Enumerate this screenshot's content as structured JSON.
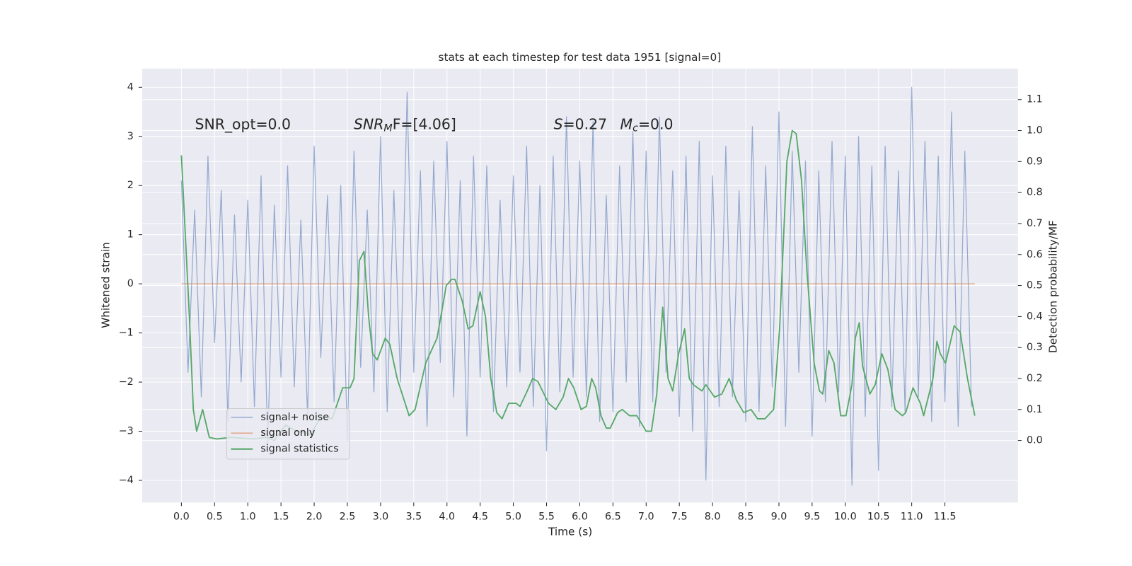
{
  "chart_data": {
    "type": "line",
    "title": "stats at each timestep for test data 1951 [signal=0]",
    "xlabel": "Time (s)",
    "ylabel": "Whitened strain",
    "y2label": "Detection probability/MF",
    "annotations": [
      [
        "SNR_opt=0.0"
      ],
      [
        "SNR",
        "M",
        "F=[4.06]"
      ],
      [
        "S",
        "=0.27"
      ],
      [
        "M",
        "c",
        "=0.0"
      ]
    ],
    "xlim": [
      -0.59,
      12.6
    ],
    "ylim": [
      -4.45,
      4.38
    ],
    "y2lim": [
      -0.2,
      1.2
    ],
    "xticks": [
      {
        "value": 0,
        "label": "0.0"
      },
      0.5,
      {
        "value": 1,
        "label": "1.0"
      },
      1.5,
      {
        "value": 2,
        "label": "2.0"
      },
      2.5,
      {
        "value": 3,
        "label": "3.0"
      },
      3.5,
      {
        "value": 4,
        "label": "4.0"
      },
      4.5,
      {
        "value": 5,
        "label": "5.0"
      },
      5.5,
      {
        "value": 6,
        "label": "6.0"
      },
      6.5,
      {
        "value": 7,
        "label": "7.0"
      },
      7.5,
      {
        "value": 8,
        "label": "8.0"
      },
      8.5,
      {
        "value": 9,
        "label": "9.0"
      },
      9.5,
      {
        "value": 10,
        "label": "10.0"
      },
      10.5,
      {
        "value": 11,
        "label": "11.0"
      },
      11.5
    ],
    "yticks": [
      {
        "value": -4,
        "label": "−4"
      },
      {
        "value": -3,
        "label": "−3"
      },
      {
        "value": -2,
        "label": "−2"
      },
      {
        "value": -1,
        "label": "−1"
      },
      0,
      1,
      2,
      3,
      4
    ],
    "y2ticks": [
      {
        "value": 0,
        "label": "0.0"
      },
      0.1,
      0.2,
      0.3,
      0.4,
      0.5,
      0.6,
      0.7,
      0.8,
      0.9,
      {
        "value": 1,
        "label": "1.0"
      },
      1.1
    ],
    "grid": true,
    "legend": "lower left",
    "series": [
      {
        "name": "signal+ noise",
        "color": "#4c72b0",
        "x": [
          0,
          0.1,
          0.2,
          0.3,
          0.4,
          0.5,
          0.6,
          0.7,
          0.8,
          0.9,
          1,
          1.1,
          1.2,
          1.3,
          1.4,
          1.5,
          1.6,
          1.7,
          1.8,
          1.9,
          2,
          2.1,
          2.2,
          2.3,
          2.4,
          2.5,
          2.6,
          2.7,
          2.8,
          2.9,
          3,
          3.1,
          3.2,
          3.3,
          3.4,
          3.5,
          3.6,
          3.7,
          3.8,
          3.9,
          4,
          4.1,
          4.2,
          4.3,
          4.4,
          4.5,
          4.6,
          4.7,
          4.8,
          4.9,
          5,
          5.1,
          5.2,
          5.3,
          5.4,
          5.5,
          5.6,
          5.7,
          5.8,
          5.9,
          6,
          6.1,
          6.2,
          6.3,
          6.4,
          6.5,
          6.6,
          6.7,
          6.8,
          6.9,
          7,
          7.1,
          7.2,
          7.3,
          7.4,
          7.5,
          7.6,
          7.7,
          7.8,
          7.9,
          8,
          8.1,
          8.2,
          8.3,
          8.4,
          8.5,
          8.6,
          8.7,
          8.8,
          8.9,
          9,
          9.1,
          9.2,
          9.3,
          9.4,
          9.5,
          9.6,
          9.7,
          9.8,
          9.9,
          10,
          10.1,
          10.2,
          10.3,
          10.4,
          10.5,
          10.6,
          10.7,
          10.8,
          10.9,
          11,
          11.1,
          11.2,
          11.3,
          11.4,
          11.5,
          11.6,
          11.7,
          11.8,
          11.9
        ],
        "values": [
          2.1,
          -1.8,
          1.5,
          -2.3,
          2.6,
          -1.2,
          1.9,
          -2.8,
          1.4,
          -2.0,
          1.7,
          -2.5,
          2.2,
          -3.3,
          1.6,
          -1.9,
          2.4,
          -2.1,
          1.3,
          -2.7,
          2.8,
          -1.5,
          1.8,
          -2.4,
          2.0,
          -3.2,
          2.7,
          -1.7,
          1.5,
          -2.2,
          3.0,
          -2.6,
          1.9,
          -2.0,
          3.9,
          -1.8,
          2.3,
          -2.9,
          2.5,
          -1.6,
          2.9,
          -2.3,
          2.1,
          -3.1,
          2.6,
          -1.9,
          2.4,
          -2.6,
          1.7,
          -2.1,
          2.2,
          -1.8,
          2.8,
          -2.5,
          2.0,
          -3.4,
          2.6,
          -2.2,
          3.4,
          -1.9,
          2.5,
          -2.3,
          3.3,
          -2.8,
          1.8,
          -2.6,
          2.4,
          -2.0,
          3.1,
          -2.9,
          2.7,
          -2.4,
          3.4,
          -1.8,
          2.3,
          -2.7,
          2.6,
          -3.0,
          2.9,
          -4.0,
          2.2,
          -2.5,
          2.8,
          -2.3,
          1.9,
          -2.8,
          3.2,
          -2.6,
          2.4,
          -2.1,
          3.5,
          -2.9,
          2.7,
          -1.8,
          2.5,
          -3.1,
          2.3,
          -2.4,
          2.9,
          -2.2,
          2.6,
          -4.1,
          3.0,
          -2.7,
          2.4,
          -3.8,
          2.8,
          -2.5,
          2.3,
          -2.6,
          4.0,
          -2.3,
          2.9,
          -2.8,
          2.6,
          -2.4,
          3.5,
          -2.9,
          2.7,
          -2.5
        ]
      },
      {
        "name": "signal only",
        "color": "#dd8452",
        "x": [
          0,
          11.95
        ],
        "values": [
          0,
          0
        ]
      },
      {
        "name": "signal statistics",
        "color": "#55a868",
        "axis": "y2",
        "x": [
          0,
          0.12,
          0.18,
          0.23,
          0.32,
          0.42,
          0.53,
          0.75,
          1.08,
          1.29,
          1.4,
          1.57,
          1.73,
          1.95,
          2.11,
          2.27,
          2.43,
          2.54,
          2.6,
          2.68,
          2.75,
          2.82,
          2.88,
          2.95,
          3.07,
          3.14,
          3.25,
          3.34,
          3.43,
          3.52,
          3.68,
          3.85,
          3.99,
          4.07,
          4.12,
          4.23,
          4.32,
          4.39,
          4.5,
          4.58,
          4.66,
          4.75,
          4.83,
          4.93,
          5.04,
          5.1,
          5.21,
          5.29,
          5.37,
          5.53,
          5.64,
          5.75,
          5.83,
          5.91,
          6.02,
          6.1,
          6.18,
          6.24,
          6.32,
          6.4,
          6.46,
          6.57,
          6.64,
          6.75,
          6.86,
          7,
          7.08,
          7.16,
          7.25,
          7.33,
          7.4,
          7.49,
          7.58,
          7.65,
          7.71,
          7.84,
          7.9,
          8.03,
          8.14,
          8.25,
          8.36,
          8.47,
          8.58,
          8.68,
          8.79,
          8.92,
          9.01,
          9.12,
          9.2,
          9.26,
          9.34,
          9.42,
          9.53,
          9.61,
          9.66,
          9.75,
          9.83,
          9.93,
          10.01,
          10.1,
          10.15,
          10.21,
          10.26,
          10.37,
          10.45,
          10.55,
          10.64,
          10.75,
          10.86,
          10.91,
          11.02,
          11.13,
          11.18,
          11.32,
          11.38,
          11.43,
          11.51,
          11.64,
          11.73,
          11.84,
          11.95
        ],
        "values": [
          0.92,
          0.4,
          0.1,
          0.03,
          0.1,
          0.01,
          0.005,
          0.01,
          0.005,
          0.01,
          0.0,
          0.05,
          0.03,
          0.02,
          0.08,
          0.07,
          0.17,
          0.17,
          0.2,
          0.58,
          0.61,
          0.4,
          0.28,
          0.26,
          0.33,
          0.31,
          0.2,
          0.14,
          0.08,
          0.1,
          0.25,
          0.33,
          0.5,
          0.52,
          0.52,
          0.45,
          0.36,
          0.37,
          0.48,
          0.4,
          0.2,
          0.09,
          0.07,
          0.12,
          0.12,
          0.11,
          0.16,
          0.2,
          0.19,
          0.12,
          0.1,
          0.14,
          0.2,
          0.17,
          0.1,
          0.11,
          0.2,
          0.17,
          0.08,
          0.04,
          0.04,
          0.09,
          0.1,
          0.08,
          0.08,
          0.03,
          0.03,
          0.15,
          0.43,
          0.2,
          0.16,
          0.28,
          0.36,
          0.2,
          0.18,
          0.16,
          0.18,
          0.14,
          0.15,
          0.2,
          0.13,
          0.09,
          0.1,
          0.07,
          0.07,
          0.1,
          0.36,
          0.9,
          1.0,
          0.99,
          0.84,
          0.55,
          0.25,
          0.16,
          0.15,
          0.29,
          0.25,
          0.08,
          0.08,
          0.18,
          0.33,
          0.38,
          0.24,
          0.15,
          0.18,
          0.28,
          0.23,
          0.1,
          0.08,
          0.09,
          0.17,
          0.12,
          0.08,
          0.2,
          0.32,
          0.28,
          0.25,
          0.37,
          0.35,
          0.2,
          0.08
        ]
      }
    ]
  }
}
